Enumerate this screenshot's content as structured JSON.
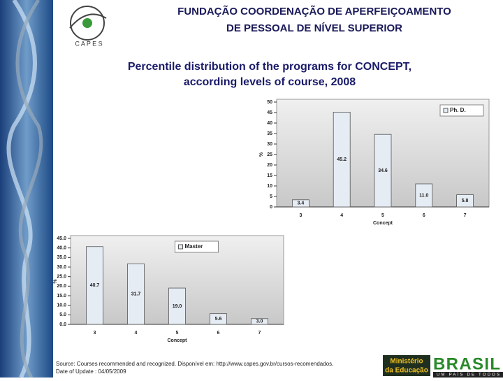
{
  "header": {
    "logo_text": "C A P E S",
    "lines": [
      "FUNDAÇÃO COORDENAÇÃO DE APERFEIÇOAMENTO",
      "DE PESSOAL DE NÍVEL SUPERIOR"
    ]
  },
  "title": [
    "Percentile distribution of the programs for CONCEPT,",
    "according levels of course, 2008"
  ],
  "chart_data": [
    {
      "type": "bar",
      "categories": [
        "3",
        "4",
        "5",
        "6",
        "7"
      ],
      "series": [
        {
          "name": "Ph. D.",
          "color": "#e6ecf4",
          "values": [
            3.4,
            45.2,
            34.6,
            11.0,
            5.8
          ],
          "value_labels": [
            "3.4",
            "45.2",
            "34.6",
            "11.0",
            "5.8"
          ]
        }
      ],
      "ylim": [
        0,
        50
      ],
      "yticks": [
        0,
        5,
        10,
        15,
        20,
        25,
        30,
        35,
        40,
        45,
        50
      ],
      "xlabel": "Concept",
      "ylabel": "%",
      "legend": "upper right"
    },
    {
      "type": "bar",
      "categories": [
        "3",
        "4",
        "5",
        "6",
        "7"
      ],
      "series": [
        {
          "name": "Master",
          "color": "#e6ecf4",
          "values": [
            40.7,
            31.7,
            19.0,
            5.6,
            3.0
          ],
          "value_labels": [
            "40.7",
            "31.7",
            "19.0",
            "5.6",
            "3.0"
          ]
        }
      ],
      "ylim": [
        0,
        45
      ],
      "yticks": [
        {
          "value": 0,
          "label": "0.0"
        },
        {
          "value": 5,
          "label": "5.0"
        },
        {
          "value": 10,
          "label": "10.0"
        },
        {
          "value": 15,
          "label": "15.0"
        },
        {
          "value": 20,
          "label": "20.0"
        },
        {
          "value": 25,
          "label": "25.0"
        },
        {
          "value": 30,
          "label": "30.0"
        },
        {
          "value": 35,
          "label": "35.0"
        },
        {
          "value": 40,
          "label": "40.0"
        },
        {
          "value": 45,
          "label": "45.0"
        }
      ],
      "xlabel": "Concept",
      "ylabel": "%",
      "legend": "upper center"
    }
  ],
  "footer": {
    "source": "Source: Courses recommended and recognized. Disponível em: http://www.capes.gov.br/cursos-recomendados.",
    "date": "Date of Update : 04/05/2009",
    "ministry": [
      "Ministério",
      "da Educação"
    ],
    "brand": "BRASIL",
    "slogan": "UM PAÍS DE TODOS"
  }
}
